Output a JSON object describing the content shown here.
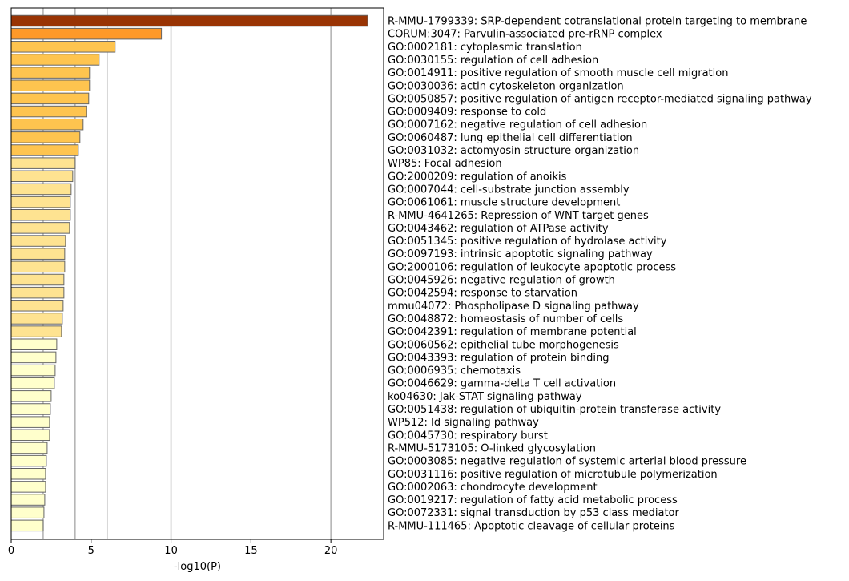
{
  "chart_data": {
    "type": "bar",
    "orientation": "horizontal",
    "xlabel": "-log10(P)",
    "xlim": [
      0,
      23.3
    ],
    "xticks": [
      0,
      5,
      10,
      15,
      20
    ],
    "grid_x": [
      2,
      4,
      6,
      10,
      20
    ],
    "categories": [
      "R-MMU-1799339: SRP-dependent cotranslational protein targeting to membrane",
      "CORUM:3047: Parvulin-associated pre-rRNP complex",
      "GO:0002181: cytoplasmic translation",
      "GO:0030155: regulation of cell adhesion",
      "GO:0014911: positive regulation of smooth muscle cell migration",
      "GO:0030036: actin cytoskeleton organization",
      "GO:0050857: positive regulation of antigen receptor-mediated signaling pathway",
      "GO:0009409: response to cold",
      "GO:0007162: negative regulation of cell adhesion",
      "GO:0060487: lung epithelial cell differentiation",
      "GO:0031032: actomyosin structure organization",
      "WP85: Focal adhesion",
      "GO:2000209: regulation of anoikis",
      "GO:0007044: cell-substrate junction assembly",
      "GO:0061061: muscle structure development",
      "R-MMU-4641265: Repression of WNT target genes",
      "GO:0043462: regulation of ATPase activity",
      "GO:0051345: positive regulation of hydrolase activity",
      "GO:0097193: intrinsic apoptotic signaling pathway",
      "GO:2000106: regulation of leukocyte apoptotic process",
      "GO:0045926: negative regulation of growth",
      "GO:0042594: response to starvation",
      "mmu04072: Phospholipase D signaling pathway",
      "GO:0048872: homeostasis of number of cells",
      "GO:0042391: regulation of membrane potential",
      "GO:0060562: epithelial tube morphogenesis",
      "GO:0043393: regulation of protein binding",
      "GO:0006935: chemotaxis",
      "GO:0046629: gamma-delta T cell activation",
      "ko04630: Jak-STAT signaling pathway",
      "GO:0051438: regulation of ubiquitin-protein transferase activity",
      "WP512: Id signaling pathway",
      "GO:0045730: respiratory burst",
      "R-MMU-5173105: O-linked glycosylation",
      "GO:0003085: negative regulation of systemic arterial blood pressure",
      "GO:0031116: positive regulation of microtubule polymerization",
      "GO:0002063: chondrocyte development",
      "GO:0019217: regulation of fatty acid metabolic process",
      "GO:0072331: signal transduction by p53 class mediator",
      "R-MMU-111465: Apoptotic cleavage of cellular proteins"
    ],
    "values": [
      22.3,
      9.4,
      6.5,
      5.5,
      4.9,
      4.9,
      4.85,
      4.7,
      4.5,
      4.3,
      4.2,
      4.0,
      3.85,
      3.75,
      3.7,
      3.7,
      3.65,
      3.4,
      3.35,
      3.35,
      3.3,
      3.3,
      3.25,
      3.2,
      3.15,
      2.85,
      2.8,
      2.75,
      2.7,
      2.5,
      2.45,
      2.4,
      2.4,
      2.25,
      2.2,
      2.15,
      2.15,
      2.1,
      2.05,
      2.0
    ],
    "colors": {
      "top": "#993404",
      "second": "#fe9929",
      "high": "#fec44f",
      "medium": "#fee391",
      "low": "#ffffcc",
      "edge": "#666666",
      "grid": "#b0b0b0"
    }
  }
}
